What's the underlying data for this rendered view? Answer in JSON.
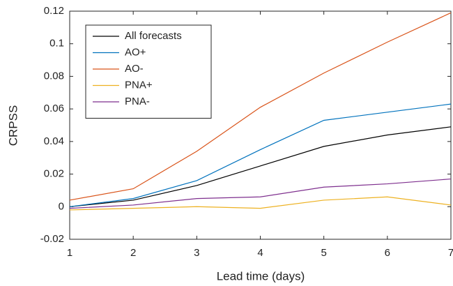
{
  "chart_data": {
    "type": "line",
    "x_label": "Lead time (days)",
    "y_label": "CRPSS",
    "x": [
      1,
      2,
      3,
      4,
      5,
      6,
      7
    ],
    "series": [
      {
        "name": "All forecasts",
        "color": "#000000",
        "values": [
          0.0,
          0.004,
          0.013,
          0.025,
          0.037,
          0.044,
          0.049
        ]
      },
      {
        "name": "AO+",
        "color": "#0072BD",
        "values": [
          0.0,
          0.005,
          0.016,
          0.035,
          0.053,
          0.058,
          0.063
        ]
      },
      {
        "name": "AO-",
        "color": "#D95319",
        "values": [
          0.004,
          0.011,
          0.034,
          0.061,
          0.082,
          0.101,
          0.119
        ]
      },
      {
        "name": "PNA+",
        "color": "#EDB120",
        "values": [
          -0.002,
          -0.001,
          0.0,
          -0.001,
          0.004,
          0.006,
          0.001
        ]
      },
      {
        "name": "PNA-",
        "color": "#7E2F8E",
        "values": [
          -0.001,
          0.001,
          0.005,
          0.006,
          0.012,
          0.014,
          0.017
        ]
      }
    ],
    "xlim": [
      1,
      7
    ],
    "xticks": [
      1,
      2,
      3,
      4,
      5,
      6,
      7
    ],
    "ylim": [
      -0.02,
      0.12
    ],
    "yticks": [
      -0.02,
      0,
      0.02,
      0.04,
      0.06,
      0.08,
      0.1,
      0.12
    ],
    "grid": false,
    "legend_position": "upper-left"
  }
}
